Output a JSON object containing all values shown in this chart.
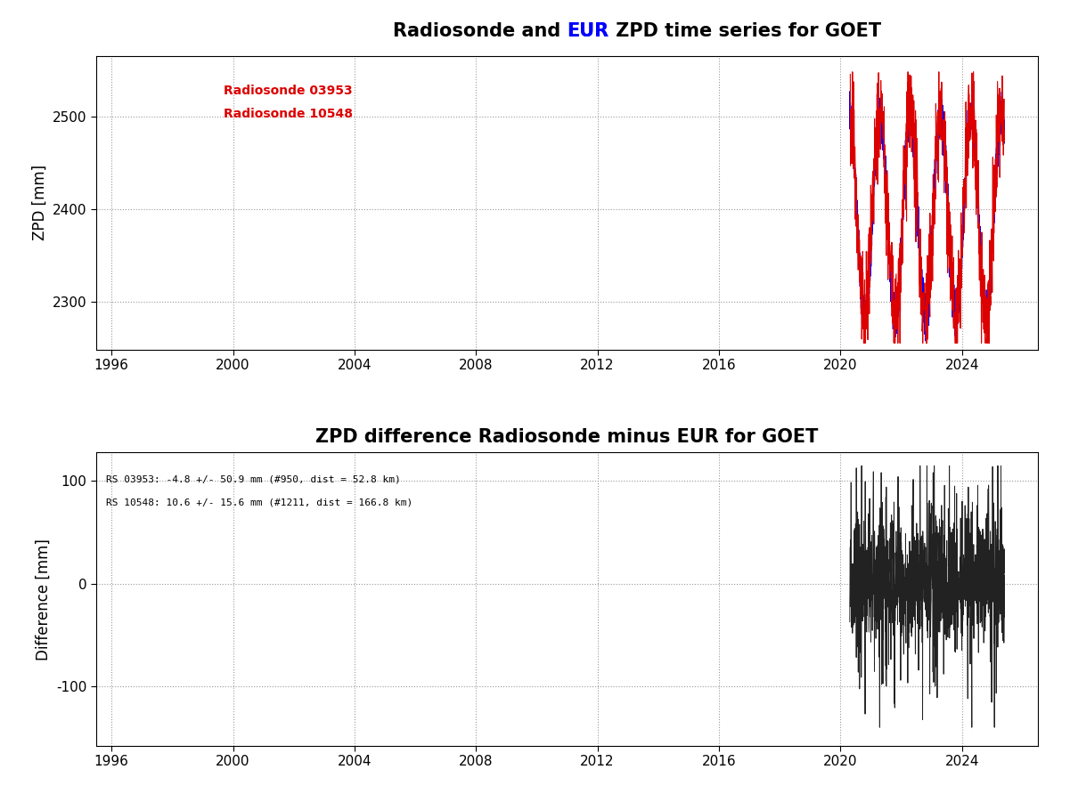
{
  "title1_part1": "Radiosonde and ",
  "title1_part2": "EUR",
  "title1_part3": " ZPD time series for GOET",
  "title2": "ZPD difference Radiosonde minus EUR for GOET",
  "ylabel1": "ZPD [mm]",
  "ylabel2": "Difference [mm]",
  "xlim": [
    1995.5,
    2026.5
  ],
  "ylim1": [
    2248,
    2565
  ],
  "ylim2": [
    -158,
    128
  ],
  "yticks1": [
    2300,
    2400,
    2500
  ],
  "yticks2": [
    -100,
    0,
    100
  ],
  "xticks": [
    1996,
    2000,
    2004,
    2008,
    2012,
    2016,
    2020,
    2024
  ],
  "legend1_line1": "Radiosonde 03953",
  "legend1_line2": "Radiosonde 10548",
  "annot2_line1": "RS 03953: -4.8 +/- 50.9 mm (#950, dist = 52.8 km)",
  "annot2_line2": "RS 10548: 10.6 +/- 15.6 mm (#1211, dist = 166.8 km)",
  "data_start_year": 2020.3,
  "data_end_year": 2025.4,
  "background_color": "#ffffff",
  "grid_color": "#999999",
  "rs_color": "#dd0000",
  "eur_color": "#0000ff",
  "diff_color": "#222222",
  "title_fontsize": 15,
  "tick_fontsize": 11,
  "ylabel_fontsize": 12,
  "legend_fontsize": 10,
  "annot_fontsize": 8
}
